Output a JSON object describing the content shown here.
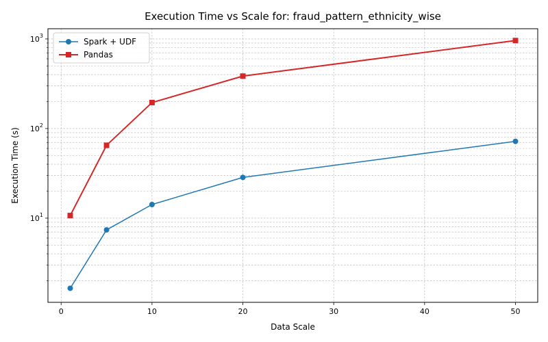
{
  "chart_data": {
    "type": "line",
    "title": "Execution Time vs Scale for: fraud_pattern_ethnicity_wise",
    "xlabel": "Data Scale",
    "ylabel": "Execution Time (s)",
    "xlim": [
      -1.45,
      52.45
    ],
    "ylim": [
      1.15,
      1300
    ],
    "yscale": "log",
    "x_ticks": [
      0,
      10,
      20,
      30,
      40,
      50
    ],
    "y_major_ticks": [
      {
        "value": 10,
        "base": "10",
        "exp": "1"
      },
      {
        "value": 100,
        "base": "10",
        "exp": "2"
      },
      {
        "value": 1000,
        "base": "10",
        "exp": "3"
      }
    ],
    "grid": true,
    "legend_position": "top-left",
    "x": [
      1,
      5,
      10,
      20,
      50
    ],
    "series": [
      {
        "name": "Spark + UDF",
        "color": "#1f77b4",
        "marker": "circle",
        "values": [
          1.65,
          7.4,
          14.2,
          28.5,
          72
        ]
      },
      {
        "name": "Pandas",
        "color": "#d62728",
        "marker": "square",
        "values": [
          10.7,
          65,
          195,
          385,
          960
        ]
      }
    ]
  }
}
